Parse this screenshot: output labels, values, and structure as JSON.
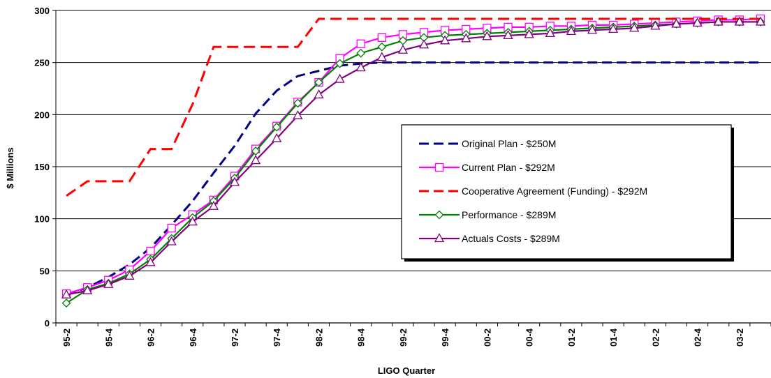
{
  "chart_data": {
    "type": "line",
    "title": "",
    "xlabel": "LIGO Quarter",
    "ylabel": "$ Millions",
    "ylim": [
      0,
      300
    ],
    "yticks": [
      0,
      50,
      100,
      150,
      200,
      250,
      300
    ],
    "grid": true,
    "legend_position": "center-right",
    "x": [
      "95-2",
      "95-3",
      "95-4",
      "96-1",
      "96-2",
      "96-3",
      "96-4",
      "97-1",
      "97-2",
      "97-3",
      "97-4",
      "98-1",
      "98-2",
      "98-3",
      "98-4",
      "99-1",
      "99-2",
      "99-3",
      "99-4",
      "00-1",
      "00-2",
      "00-3",
      "00-4",
      "01-1",
      "01-2",
      "01-3",
      "01-4",
      "02-1",
      "02-2",
      "02-3",
      "02-4",
      "03-1",
      "03-2",
      "03-3"
    ],
    "xtick_labels": [
      "95-2",
      "95-4",
      "96-2",
      "96-4",
      "97-2",
      "97-4",
      "98-2",
      "98-4",
      "99-2",
      "99-4",
      "00-2",
      "00-4",
      "01-2",
      "01-4",
      "02-2",
      "02-4",
      "03-2"
    ],
    "series": [
      {
        "name": "Original Plan - $250M",
        "color": "#000080",
        "style": "dashed",
        "marker": "none",
        "values": [
          27,
          34,
          44,
          56,
          72,
          94,
          117,
          144,
          170,
          201,
          223,
          237,
          242,
          247,
          249,
          250,
          250,
          250,
          250,
          250,
          250,
          250,
          250,
          250,
          250,
          250,
          250,
          250,
          250,
          250,
          250,
          250,
          250,
          250
        ]
      },
      {
        "name": "Current Plan - $292M",
        "color": "#ff00ff",
        "style": "solid",
        "marker": "square",
        "values": [
          28,
          34,
          41,
          51,
          69,
          91,
          104,
          118,
          141,
          167,
          189,
          212,
          231,
          254,
          268,
          274,
          277,
          279,
          281,
          282,
          283,
          284,
          284,
          285,
          285,
          286,
          286,
          287,
          288,
          289,
          290,
          291,
          291,
          292
        ]
      },
      {
        "name": "Cooperative Agreement (Funding) - $292M",
        "color": "#ff0000",
        "style": "dashed",
        "marker": "none",
        "step": true,
        "values": [
          122,
          136,
          136,
          136,
          167,
          167,
          210,
          265,
          265,
          265,
          265,
          265,
          292,
          292,
          292,
          292,
          292,
          292,
          292,
          292,
          292,
          292,
          292,
          292,
          292,
          292,
          292,
          292,
          292,
          292,
          292,
          292,
          292,
          292
        ]
      },
      {
        "name": "Performance - $289M",
        "color": "#008000",
        "style": "solid",
        "marker": "diamond",
        "values": [
          19,
          32,
          38,
          47,
          61,
          81,
          101,
          117,
          139,
          165,
          188,
          211,
          231,
          249,
          259,
          265,
          271,
          274,
          276,
          277,
          278,
          279,
          280,
          281,
          282,
          283,
          284,
          285,
          286,
          287,
          288,
          289,
          289,
          289
        ]
      },
      {
        "name": "Actuals Costs - $289M",
        "color": "#800080",
        "style": "solid",
        "marker": "triangle",
        "values": [
          27,
          31,
          37,
          45,
          58,
          78,
          97,
          112,
          135,
          156,
          177,
          199,
          219,
          234,
          245,
          255,
          262,
          267,
          271,
          273,
          275,
          276,
          277,
          278,
          280,
          281,
          282,
          283,
          285,
          287,
          288,
          289,
          289,
          289
        ]
      }
    ]
  }
}
